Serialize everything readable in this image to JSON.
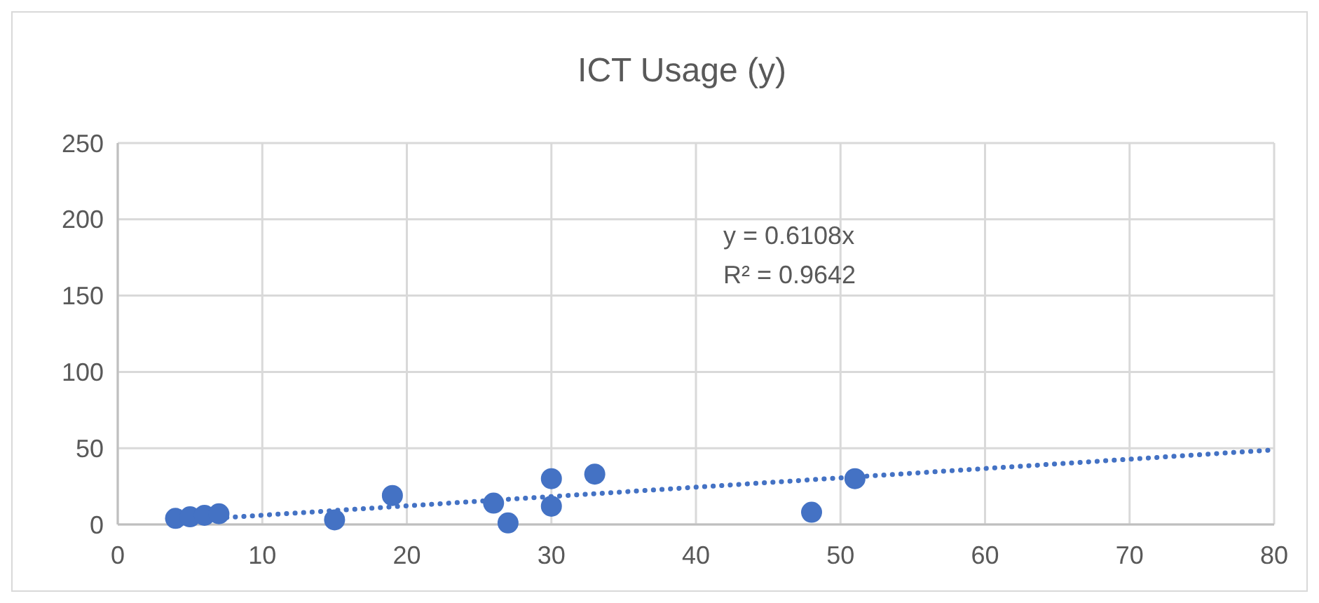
{
  "chart_data": {
    "type": "scatter",
    "title": "ICT Usage (y)",
    "series": [
      {
        "color": "#4472c4",
        "marker": "circle",
        "x": [
          4,
          5,
          6,
          7,
          15,
          19,
          26,
          27,
          30,
          30,
          33,
          48,
          51
        ],
        "values": [
          4,
          5,
          6,
          7,
          3,
          19,
          14,
          1,
          30,
          12,
          33,
          8,
          30
        ]
      },
      {
        "type": "line",
        "color": "#4472c4",
        "line_style": "dotted",
        "marker": "none",
        "x": [
          4,
          80
        ],
        "values": [
          2.4,
          48.9
        ]
      }
    ],
    "annotations": [
      "y = 0.6108x",
      "R² = 0.9642"
    ],
    "xlim": [
      0,
      80
    ],
    "xticks": [
      0,
      10,
      20,
      30,
      40,
      50,
      60,
      70,
      80
    ],
    "ylim": [
      0,
      250
    ],
    "yticks": [
      0,
      50,
      100,
      150,
      200,
      250
    ],
    "grid": true
  }
}
